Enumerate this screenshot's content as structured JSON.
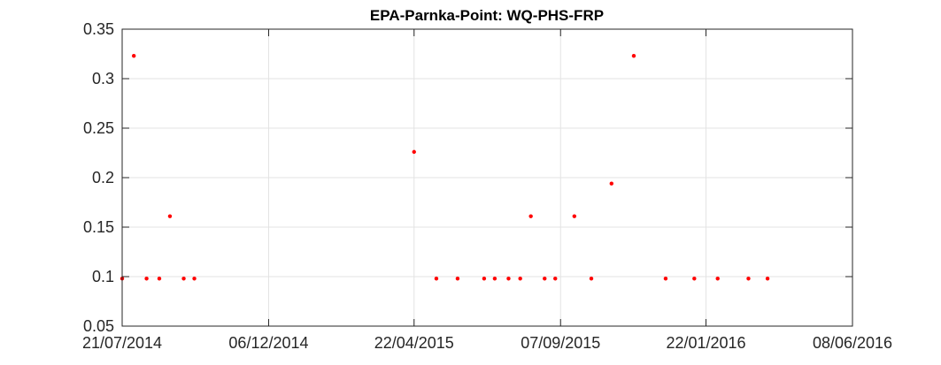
{
  "chart_data": {
    "type": "scatter",
    "title": "EPA-Parnka-Point: WQ-PHS-FRP",
    "xlabel": "",
    "ylabel": "",
    "x_axis_type": "date",
    "xlim": [
      "21/07/2014",
      "08/06/2016"
    ],
    "ylim": [
      0.05,
      0.35
    ],
    "x_ticks": [
      "21/07/2014",
      "06/12/2014",
      "22/04/2015",
      "07/09/2015",
      "22/01/2016",
      "08/06/2016"
    ],
    "y_ticks": [
      "0.05",
      "0.1",
      "0.15",
      "0.2",
      "0.25",
      "0.3",
      "0.35"
    ],
    "grid": true,
    "marker_color": "#ff0000",
    "series": [
      {
        "points": [
          {
            "x": "21/07/2014",
            "y": 0.098
          },
          {
            "x": "01/08/2014",
            "y": 0.323
          },
          {
            "x": "13/08/2014",
            "y": 0.098
          },
          {
            "x": "25/08/2014",
            "y": 0.098
          },
          {
            "x": "04/09/2014",
            "y": 0.161
          },
          {
            "x": "17/09/2014",
            "y": 0.098
          },
          {
            "x": "27/09/2014",
            "y": 0.098
          },
          {
            "x": "22/04/2015",
            "y": 0.226
          },
          {
            "x": "13/05/2015",
            "y": 0.098
          },
          {
            "x": "02/06/2015",
            "y": 0.098
          },
          {
            "x": "27/06/2015",
            "y": 0.098
          },
          {
            "x": "07/07/2015",
            "y": 0.098
          },
          {
            "x": "20/07/2015",
            "y": 0.098
          },
          {
            "x": "31/07/2015",
            "y": 0.098
          },
          {
            "x": "10/08/2015",
            "y": 0.161
          },
          {
            "x": "23/08/2015",
            "y": 0.098
          },
          {
            "x": "02/09/2015",
            "y": 0.098
          },
          {
            "x": "20/09/2015",
            "y": 0.161
          },
          {
            "x": "06/10/2015",
            "y": 0.098
          },
          {
            "x": "25/10/2015",
            "y": 0.194
          },
          {
            "x": "15/11/2015",
            "y": 0.323
          },
          {
            "x": "15/12/2015",
            "y": 0.098
          },
          {
            "x": "11/01/2016",
            "y": 0.098
          },
          {
            "x": "02/02/2016",
            "y": 0.098
          },
          {
            "x": "02/03/2016",
            "y": 0.098
          },
          {
            "x": "20/03/2016",
            "y": 0.098
          }
        ]
      }
    ]
  }
}
